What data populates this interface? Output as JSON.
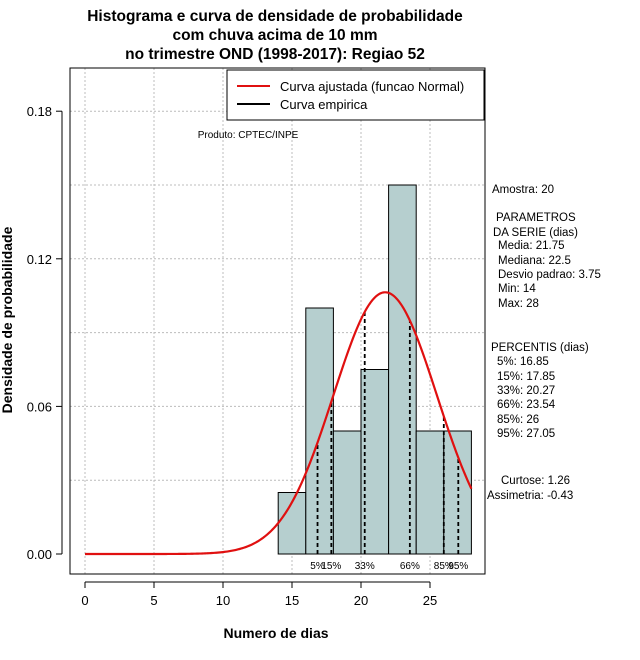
{
  "chart_data": {
    "type": "histogram",
    "title": [
      "Histograma e curva de densidade de probabilidade",
      "com chuva acima de 10 mm",
      "no trimestre OND (1998-2017): Regiao 52"
    ],
    "xlabel": "Numero de dias",
    "ylabel": "Densidade de probabilidade",
    "xlim": [
      -1,
      28.5
    ],
    "ylim": [
      0,
      0.2
    ],
    "xticks": [
      0,
      5,
      10,
      15,
      20,
      25
    ],
    "xtick_labels": [
      "0",
      "5",
      "10",
      "15",
      "20",
      "25"
    ],
    "yticks": [
      0,
      0.06,
      0.12,
      0.18
    ],
    "ytick_labels": [
      "0.00",
      "0.06",
      "0.12",
      "0.18"
    ],
    "grid": true,
    "bins": [
      {
        "start": 14,
        "end": 16,
        "density": 0.025
      },
      {
        "start": 16,
        "end": 18,
        "density": 0.1
      },
      {
        "start": 18,
        "end": 20,
        "density": 0.05
      },
      {
        "start": 20,
        "end": 22,
        "density": 0.075
      },
      {
        "start": 22,
        "end": 24,
        "density": 0.15
      },
      {
        "start": 24,
        "end": 26,
        "density": 0.05
      },
      {
        "start": 26,
        "end": 28,
        "density": 0.05
      }
    ],
    "fit_curve": {
      "name": "Curva ajustada (funcao Normal)",
      "distribution": "normal",
      "mean": 21.75,
      "sd": 3.75,
      "x_range": [
        0,
        28
      ],
      "color": "#e01010"
    },
    "empirical_curve": {
      "name": "Curva empirica",
      "color": "#000000"
    },
    "legend_position": "top-right",
    "percentiles": [
      {
        "label": "5%",
        "value": 16.85
      },
      {
        "label": "15%",
        "value": 17.85
      },
      {
        "label": "33%",
        "value": 20.27
      },
      {
        "label": "66%",
        "value": 23.54
      },
      {
        "label": "85%",
        "value": 26
      },
      {
        "label": "95%",
        "value": 27.05
      }
    ],
    "annotation": "Produto: CPTEC/INPE",
    "bar_color": "#b6cfcf"
  },
  "side_panel": {
    "sample": "Amostra: 20",
    "params_title": [
      "PARAMETROS",
      "DA SERIE (dias)"
    ],
    "params": [
      "Media: 21.75",
      "Mediana: 22.5",
      "Desvio padrao: 3.75",
      "Min: 14",
      "Max: 28"
    ],
    "percentis_title": "PERCENTIS (dias)",
    "percentis": [
      "5%: 16.85",
      "15%: 17.85",
      "33%: 20.27",
      "66%: 23.54",
      "85%: 26",
      "95%: 27.05"
    ],
    "stats": [
      "Curtose: 1.26",
      "Assimetria: -0.43"
    ]
  }
}
